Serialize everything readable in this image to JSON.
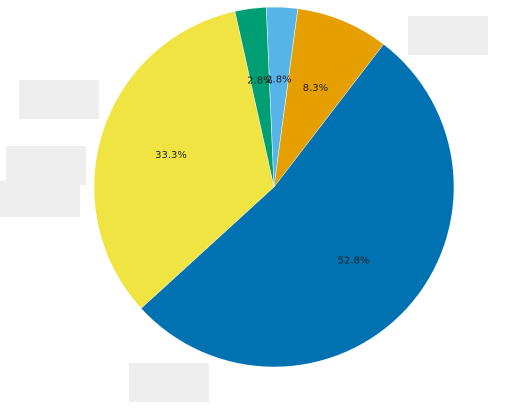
{
  "chart_data": {
    "type": "pie",
    "title": "",
    "categories": [
      "",
      "",
      "",
      "",
      ""
    ],
    "values": [
      52.8,
      33.3,
      2.8,
      2.8,
      8.3
    ],
    "labels": [
      "52.8%",
      "33.3%",
      "2.8%",
      "2.8%",
      "8.3%"
    ],
    "colors": [
      "#0072b2",
      "#f0e442",
      "#009e73",
      "#56b4e9",
      "#e69f00"
    ],
    "start_angle_deg": 52.5,
    "direction": "clockwise",
    "legend": "none"
  }
}
